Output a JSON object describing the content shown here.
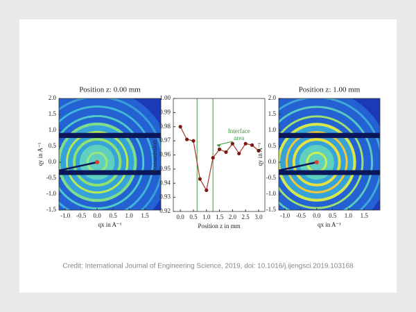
{
  "caption": "Credit: International Journal of Engineering Science, 2019, doi: 10.1016/j.ijengsci.2019.103168",
  "chart_data": [
    {
      "type": "image",
      "title": "Position z: 0.00 mm",
      "xlabel": "qx in A⁻¹",
      "ylabel": "qy in A⁻¹",
      "xlim": [
        -1.2,
        2.0
      ],
      "ylim": [
        -1.5,
        2.0
      ],
      "xticks": [
        {
          "value": -1,
          "label": "-1.0"
        },
        -0.5,
        {
          "value": 0,
          "label": "0.0"
        },
        0.5,
        {
          "value": 1,
          "label": "1.0"
        },
        1.5
      ],
      "yticks": [
        {
          "value": -1.5,
          "label": "-1.5"
        },
        {
          "value": -1,
          "label": "-1.0"
        },
        -0.5,
        {
          "value": 0,
          "label": "0.0"
        },
        0.5,
        {
          "value": 1,
          "label": "1.0"
        },
        1.5,
        {
          "value": 2,
          "label": "2.0"
        }
      ]
    },
    {
      "type": "line",
      "xlabel": "Position z in mm",
      "ylabel": "Transmission -",
      "x": [
        0,
        0.25,
        0.5,
        0.75,
        1.0,
        1.25,
        1.5,
        1.75,
        2.0,
        2.25,
        2.5,
        2.75,
        3.0
      ],
      "series": [
        {
          "color": "#a8322a",
          "values": [
            0.98,
            0.971,
            0.97,
            0.943,
            0.935,
            0.958,
            0.964,
            0.962,
            0.968,
            0.961,
            0.968,
            0.967,
            0.963
          ]
        }
      ],
      "xlim": [
        -0.27,
        3.24
      ],
      "ylim": [
        0.92,
        1.0
      ],
      "xticks": [
        {
          "value": 0,
          "label": "0.0"
        },
        0.5,
        {
          "value": 1,
          "label": "1.0"
        },
        1.5,
        {
          "value": 2,
          "label": "2.0"
        },
        2.5,
        {
          "value": 3,
          "label": "3.0"
        }
      ],
      "yticks": [
        0.92,
        0.93,
        0.94,
        0.95,
        0.96,
        0.97,
        0.98,
        0.99,
        {
          "value": 1,
          "label": "1.00"
        }
      ],
      "vlines": [
        0.64,
        1.25
      ],
      "vline_color": "#3a9a3a",
      "annotation": [
        "Interface",
        "area"
      ]
    },
    {
      "type": "image",
      "title": "Position z: 1.00 mm",
      "xlabel": "qx in A⁻¹",
      "ylabel": "qy in A⁻¹",
      "xlim": [
        -1.2,
        2.0
      ],
      "ylim": [
        -1.5,
        2.0
      ],
      "xticks": [
        {
          "value": -1,
          "label": "-1.0"
        },
        -0.5,
        {
          "value": 0,
          "label": "0.0"
        },
        0.5,
        {
          "value": 1,
          "label": "1.0"
        },
        1.5
      ],
      "yticks": [
        {
          "value": -1.5,
          "label": "-1.5"
        },
        {
          "value": -1,
          "label": "-1.0"
        },
        -0.5,
        {
          "value": 0,
          "label": "0.0"
        },
        0.5,
        {
          "value": 1,
          "label": "1.0"
        },
        1.5,
        {
          "value": 2,
          "label": "2.0"
        }
      ]
    }
  ]
}
